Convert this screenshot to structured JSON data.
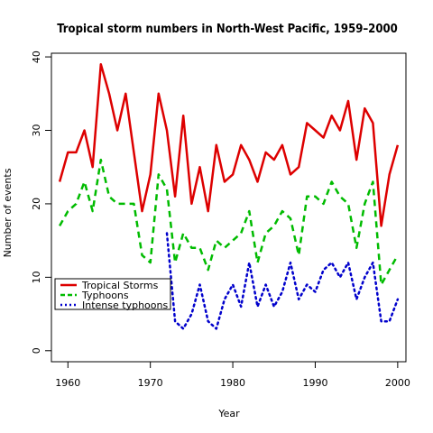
{
  "chart_data": {
    "type": "line",
    "title": "Tropical storm numbers in North-West Pacific, 1959–2000",
    "xlabel": "Year",
    "ylabel": "Number of events",
    "xlim": [
      1958,
      2001
    ],
    "ylim": [
      -1.5,
      40.5
    ],
    "xticks": [
      1960,
      1970,
      1980,
      1990,
      2000
    ],
    "yticks": [
      0,
      10,
      20,
      30,
      40
    ],
    "grid": false,
    "legend_position": "lower-left",
    "series": [
      {
        "name": "Tropical Storms",
        "color": "#dd0000",
        "dash": "solid",
        "x": [
          1959,
          1960,
          1961,
          1962,
          1963,
          1964,
          1965,
          1966,
          1967,
          1968,
          1969,
          1970,
          1971,
          1972,
          1973,
          1974,
          1975,
          1976,
          1977,
          1978,
          1979,
          1980,
          1981,
          1982,
          1983,
          1984,
          1985,
          1986,
          1987,
          1988,
          1989,
          1990,
          1991,
          1992,
          1993,
          1994,
          1995,
          1996,
          1997,
          1998,
          1999,
          2000
        ],
        "values": [
          23,
          27,
          27,
          30,
          25,
          39,
          35,
          30,
          35,
          27,
          19,
          24,
          35,
          30,
          21,
          32,
          20,
          25,
          19,
          28,
          23,
          24,
          28,
          26,
          23,
          27,
          26,
          28,
          24,
          25,
          31,
          30,
          29,
          32,
          30,
          34,
          26,
          33,
          31,
          17,
          24,
          28
        ]
      },
      {
        "name": "Typhoons",
        "color": "#00bb00",
        "dash": "dashed",
        "x": [
          1959,
          1960,
          1961,
          1962,
          1963,
          1964,
          1965,
          1966,
          1967,
          1968,
          1969,
          1970,
          1971,
          1972,
          1973,
          1974,
          1975,
          1976,
          1977,
          1978,
          1979,
          1980,
          1981,
          1982,
          1983,
          1984,
          1985,
          1986,
          1987,
          1988,
          1989,
          1990,
          1991,
          1992,
          1993,
          1994,
          1995,
          1996,
          1997,
          1998,
          1999,
          2000
        ],
        "values": [
          17,
          19,
          20,
          23,
          19,
          26,
          21,
          20,
          20,
          20,
          13,
          12,
          24,
          22,
          12,
          16,
          14,
          14,
          11,
          15,
          14,
          15,
          16,
          19,
          12,
          16,
          17,
          19,
          18,
          13,
          21,
          21,
          20,
          23,
          21,
          20,
          14,
          20,
          23,
          9,
          11,
          13
        ]
      },
      {
        "name": "Intense typhoons",
        "color": "#0000cc",
        "dash": "dotted",
        "x": [
          1972,
          1973,
          1974,
          1975,
          1976,
          1977,
          1978,
          1979,
          1980,
          1981,
          1982,
          1983,
          1984,
          1985,
          1986,
          1987,
          1988,
          1989,
          1990,
          1991,
          1992,
          1993,
          1994,
          1995,
          1996,
          1997,
          1998,
          1999,
          2000
        ],
        "values": [
          16,
          4,
          3,
          5,
          9,
          4,
          3,
          7,
          9,
          6,
          12,
          6,
          9,
          6,
          8,
          12,
          7,
          9,
          8,
          11,
          12,
          10,
          12,
          7,
          10,
          12,
          4,
          4,
          7
        ]
      }
    ]
  }
}
